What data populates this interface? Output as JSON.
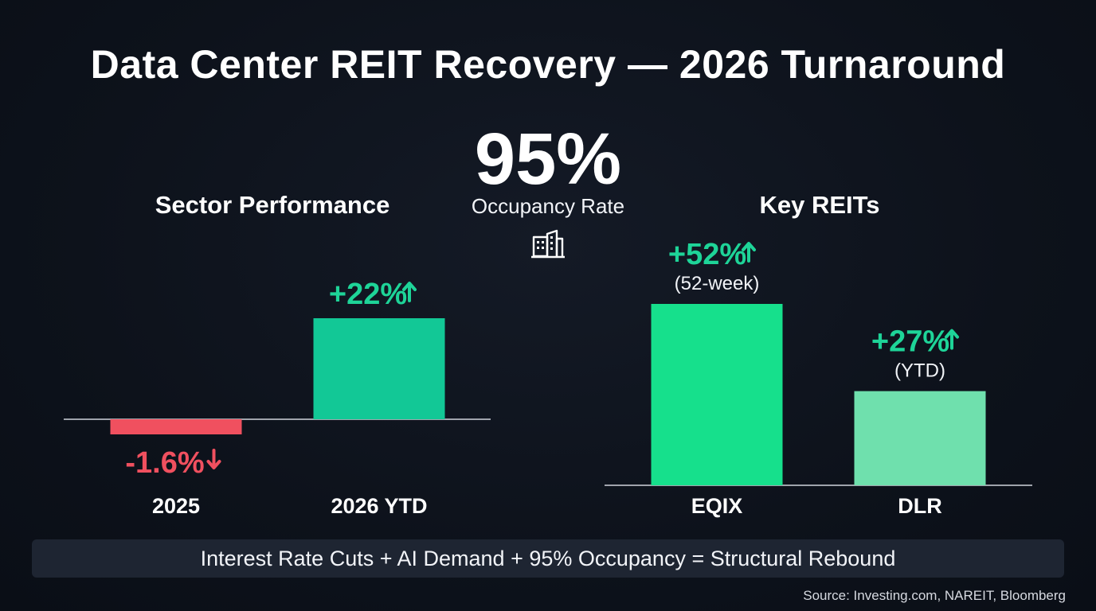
{
  "title": "Data Center REIT Recovery — 2026 Turnaround",
  "headline_stat": {
    "value": "95%",
    "label": "Occupancy Rate",
    "icon": "building-icon"
  },
  "footer": "Interest Rate Cuts + AI Demand + 95% Occupancy = Structural Rebound",
  "source": "Source: Investing.com, NAREIT, Bloomberg",
  "colors": {
    "negative": "#f0505f",
    "positive": "#1ed498",
    "positive_bright": "#16e08c",
    "positive_light": "#6fe0ad",
    "sector_bar": "#12c896",
    "axis": "#d0d4dc"
  },
  "chart_data": [
    {
      "type": "bar",
      "title": "Sector Performance",
      "categories": [
        "2025",
        "2026 YTD"
      ],
      "values": [
        -1.6,
        22
      ],
      "labels": [
        "-1.6%",
        "+22%"
      ],
      "arrows": [
        "down",
        "up"
      ],
      "ylim": [
        -3,
        24
      ]
    },
    {
      "type": "bar",
      "title": "Key REITs",
      "categories": [
        "EQIX",
        "DLR"
      ],
      "values": [
        52,
        27
      ],
      "labels": [
        "+52%",
        "+27%"
      ],
      "sublabels": [
        "(52-week)",
        "(YTD)"
      ],
      "arrows": [
        "up",
        "up"
      ],
      "ylim": [
        0,
        56
      ]
    }
  ]
}
